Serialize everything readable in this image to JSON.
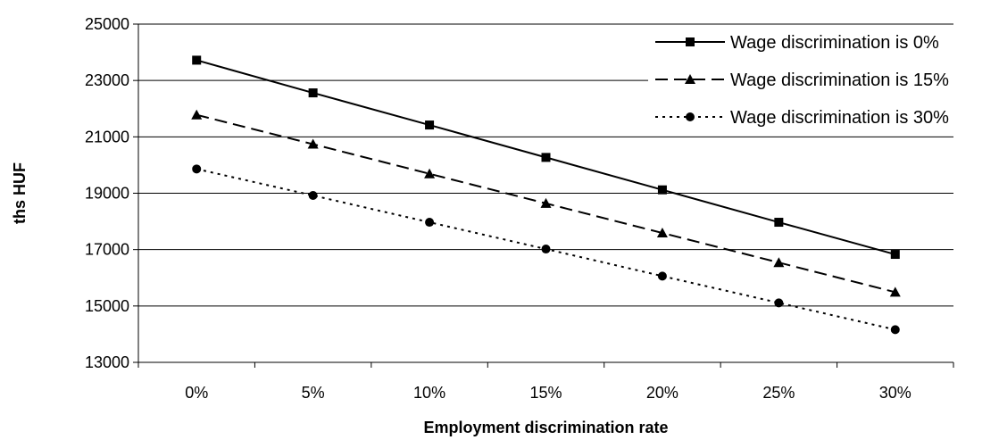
{
  "chart_data": {
    "type": "line",
    "categories": [
      "0%",
      "5%",
      "10%",
      "15%",
      "20%",
      "25%",
      "30%"
    ],
    "series": [
      {
        "name": "Wage discrimination is 0%",
        "values": [
          23720,
          22560,
          21420,
          20270,
          19120,
          17970,
          16830
        ],
        "marker": "square",
        "dash": "solid"
      },
      {
        "name": "Wage discrimination is 15%",
        "values": [
          21780,
          20740,
          19690,
          18640,
          17590,
          16540,
          15490
        ],
        "marker": "triangle",
        "dash": "dashed"
      },
      {
        "name": "Wage discrimination is 30%",
        "values": [
          19860,
          18920,
          17970,
          17020,
          16060,
          15110,
          14160
        ],
        "marker": "circle",
        "dash": "dotted"
      }
    ],
    "xlabel": "Employment discrimination rate",
    "ylabel": "ths HUF",
    "ylim": [
      13000,
      25000
    ],
    "yticks": [
      13000,
      15000,
      17000,
      19000,
      21000,
      23000,
      25000
    ],
    "grid": true,
    "legend": "top-right"
  }
}
